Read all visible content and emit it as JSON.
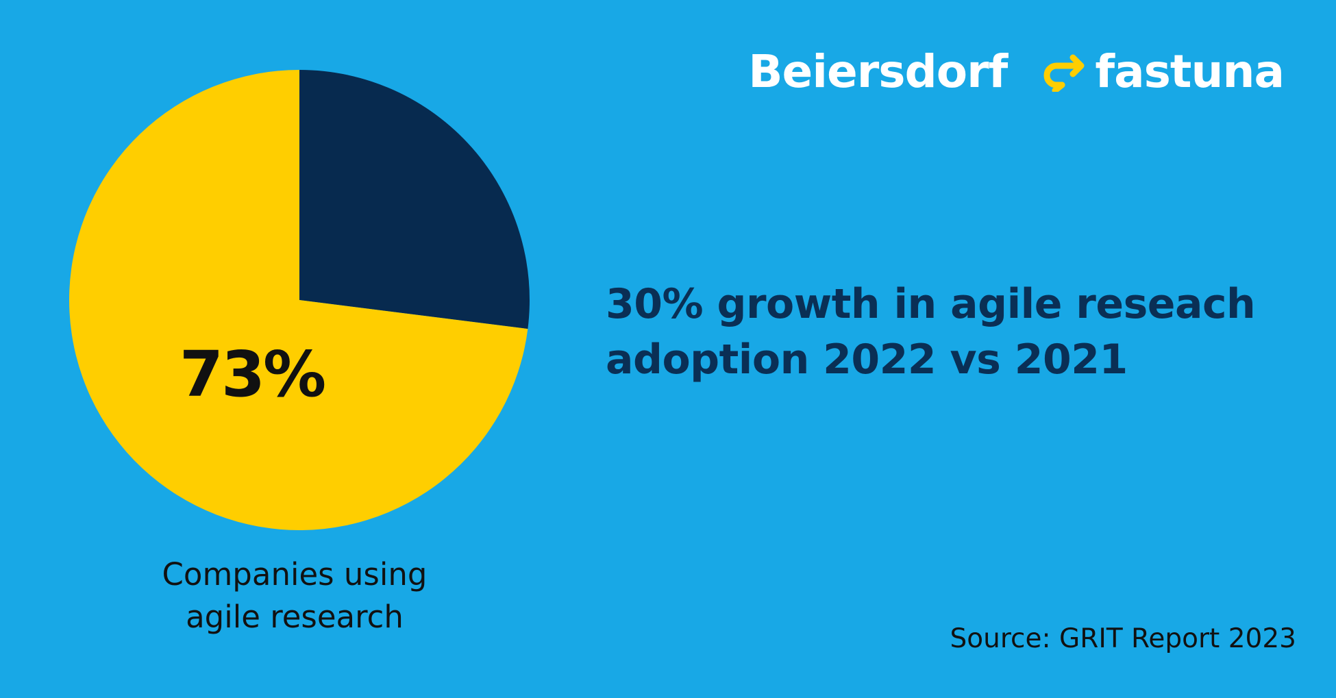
{
  "logos": {
    "beiersdorf": "Beiersdorf",
    "fastuna": "fastuna",
    "fastuna_mark_color": "#FFCE00"
  },
  "headline": {
    "line1": "30% growth in agile reseach",
    "line2": "adoption 2022 vs 2021"
  },
  "caption": {
    "line1": "Companies using",
    "line2": "agile research"
  },
  "source": "Source: GRIT Report 2023",
  "colors": {
    "background": "#18A8E6",
    "yes_slice": "#FFCE00",
    "no_slice": "#072A4F",
    "headline": "#0A2F55"
  },
  "chart_data": {
    "type": "pie",
    "categories": [
      "Companies using agile research",
      ""
    ],
    "values": [
      73,
      27
    ],
    "colors": [
      "#FFCE00",
      "#072A4F"
    ],
    "data_labels": [
      "73%",
      ""
    ],
    "start_angle": "12 o'clock",
    "direction": "clockwise, dark slice first"
  }
}
